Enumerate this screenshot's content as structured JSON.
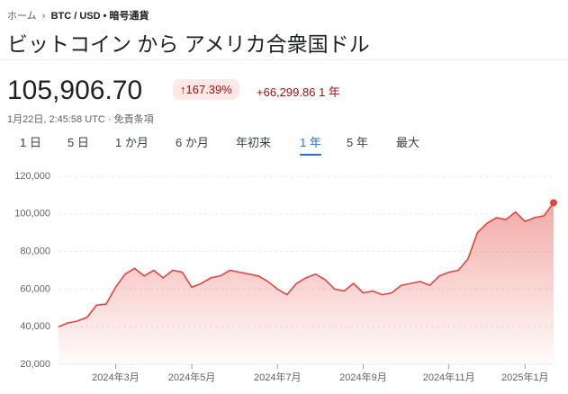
{
  "header": {
    "breadcrumb": [
      "ホーム",
      "BTC / USD • 暗号通貨"
    ],
    "title": "ビットコイン から アメリカ合衆国ドル",
    "price": "105,906.70",
    "change_percent": "167.39%",
    "change_value": "+66,299.86",
    "change_period": "1 年",
    "timestamp": "1月22日, 2:45:58 UTC · 免責条項"
  },
  "tabs": {
    "items": [
      "1 日",
      "5 日",
      "1 か月",
      "6 か月",
      "年初来",
      "1 年",
      "5 年",
      "最大"
    ],
    "selected": 5
  },
  "chart_data": {
    "type": "line",
    "categories": [
      null,
      null,
      null,
      null,
      null,
      null,
      "2024年3月",
      null,
      null,
      null,
      null,
      null,
      null,
      null,
      "2024年5月",
      null,
      null,
      null,
      null,
      null,
      null,
      null,
      null,
      "2024年7月",
      null,
      null,
      null,
      null,
      null,
      null,
      null,
      null,
      "2024年9月",
      null,
      null,
      null,
      null,
      null,
      null,
      null,
      null,
      "2024年11月",
      null,
      null,
      null,
      null,
      null,
      null,
      null,
      "2025年1月",
      null,
      null,
      null
    ],
    "series": [
      {
        "color": "#e2453c",
        "values": [
          40000,
          42000,
          43000,
          45000,
          51500,
          52000,
          61000,
          68000,
          71000,
          67000,
          70000,
          66000,
          70000,
          69000,
          61000,
          63000,
          66000,
          67000,
          70000,
          69000,
          68000,
          67000,
          64000,
          60000,
          57000,
          63000,
          66000,
          68000,
          65000,
          60000,
          59000,
          63000,
          58000,
          59000,
          57000,
          58000,
          62000,
          63000,
          64000,
          62000,
          67000,
          69000,
          70000,
          76000,
          90000,
          95000,
          98000,
          97000,
          101000,
          96000,
          98000,
          99000,
          105906.7
        ]
      }
    ],
    "ylim": [
      20000,
      120000
    ],
    "yticks": [
      {
        "value": 20000,
        "label": "20,000"
      },
      {
        "value": 40000,
        "label": "40,000"
      },
      {
        "value": 60000,
        "label": "60,000"
      },
      {
        "value": 80000,
        "label": "80,000"
      },
      {
        "value": 100000,
        "label": "100,000"
      },
      {
        "value": 120000,
        "label": "120,000"
      }
    ],
    "grid": true
  }
}
